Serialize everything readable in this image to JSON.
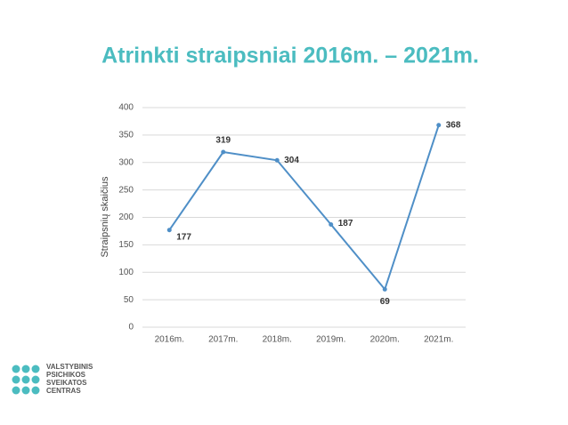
{
  "chart_data": {
    "type": "line",
    "title": "Atrinkti straipsniai 2016m. – 2021m.",
    "y_label": "Straipsnių skaičius",
    "categories": [
      "2016m.",
      "2017m.",
      "2018m.",
      "2019m.",
      "2020m.",
      "2021m."
    ],
    "values": [
      177,
      319,
      304,
      187,
      69,
      368
    ],
    "color": "#4f8fc7",
    "ylim": [
      0,
      400
    ],
    "yticks": [
      0,
      50,
      100,
      150,
      200,
      250,
      300,
      350,
      400
    ],
    "grid": true
  },
  "logo": {
    "lines": [
      "VALSTYBINIS",
      "PSICHIKOS",
      "SVEIKATOS",
      "CENTRAS"
    ]
  }
}
